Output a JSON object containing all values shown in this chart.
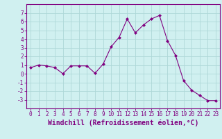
{
  "x": [
    0,
    1,
    2,
    3,
    4,
    5,
    6,
    7,
    8,
    9,
    10,
    11,
    12,
    13,
    14,
    15,
    16,
    17,
    18,
    19,
    20,
    21,
    22,
    23
  ],
  "y": [
    0.7,
    1.0,
    0.9,
    0.7,
    0.0,
    0.9,
    0.9,
    0.9,
    0.05,
    1.1,
    3.1,
    4.2,
    6.3,
    4.7,
    5.6,
    6.3,
    6.7,
    3.8,
    2.1,
    -0.8,
    -1.9,
    -2.5,
    -3.1,
    -3.1
  ],
  "line_color": "#800080",
  "marker": "D",
  "marker_size": 2,
  "bg_color": "#d0f0f0",
  "grid_color": "#aed8d8",
  "xlabel": "Windchill (Refroidissement éolien,°C)",
  "xlim": [
    -0.5,
    23.5
  ],
  "ylim": [
    -4,
    8
  ],
  "yticks": [
    -3,
    -2,
    -1,
    0,
    1,
    2,
    3,
    4,
    5,
    6,
    7
  ],
  "xticks": [
    0,
    1,
    2,
    3,
    4,
    5,
    6,
    7,
    8,
    9,
    10,
    11,
    12,
    13,
    14,
    15,
    16,
    17,
    18,
    19,
    20,
    21,
    22,
    23
  ],
  "tick_label_fontsize": 5.5,
  "xlabel_fontsize": 7.0,
  "spine_color": "#800080",
  "linewidth": 0.8
}
